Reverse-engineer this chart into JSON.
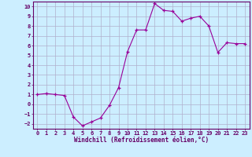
{
  "x": [
    0,
    1,
    2,
    3,
    4,
    5,
    6,
    7,
    8,
    9,
    10,
    11,
    12,
    13,
    14,
    15,
    16,
    17,
    18,
    19,
    20,
    21,
    22,
    23
  ],
  "y": [
    1.0,
    1.1,
    1.0,
    0.9,
    -1.3,
    -2.2,
    -1.8,
    -1.4,
    -0.1,
    1.7,
    5.4,
    7.6,
    7.6,
    10.3,
    9.6,
    9.5,
    8.5,
    8.8,
    9.0,
    8.0,
    5.3,
    6.3,
    6.2,
    6.2
  ],
  "xlim": [
    -0.5,
    23.5
  ],
  "ylim": [
    -2.5,
    10.5
  ],
  "xticks": [
    0,
    1,
    2,
    3,
    4,
    5,
    6,
    7,
    8,
    9,
    10,
    11,
    12,
    13,
    14,
    15,
    16,
    17,
    18,
    19,
    20,
    21,
    22,
    23
  ],
  "yticks": [
    -2,
    -1,
    0,
    1,
    2,
    3,
    4,
    5,
    6,
    7,
    8,
    9,
    10
  ],
  "xlabel": "Windchill (Refroidissement éolien,°C)",
  "line_color": "#990099",
  "bg_color": "#cceeff",
  "grid_color": "#b0b0cc",
  "tick_color": "#660066",
  "spine_color": "#660066"
}
